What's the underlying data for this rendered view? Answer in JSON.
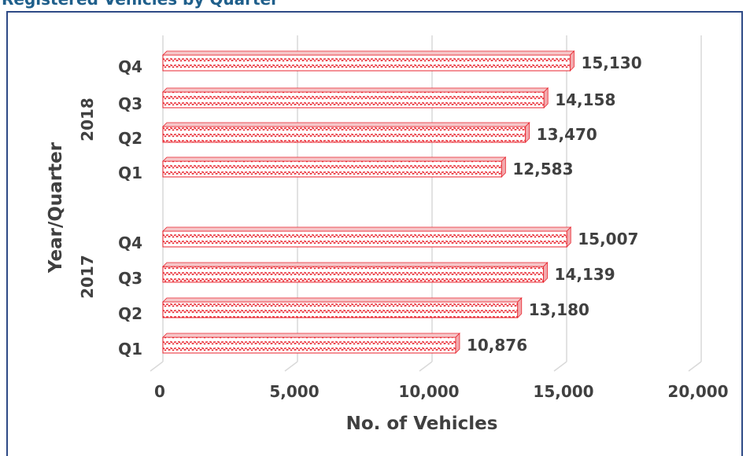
{
  "header": {
    "title_fragment": "Registered Vehicles by Quarter"
  },
  "chart_data": {
    "type": "bar",
    "orientation": "horizontal",
    "style": "3d",
    "groups": [
      {
        "name": "2018",
        "categories": [
          "Q4",
          "Q3",
          "Q2",
          "Q1"
        ],
        "values": [
          15130,
          14158,
          13470,
          12583
        ]
      },
      {
        "name": "2017",
        "categories": [
          "Q4",
          "Q3",
          "Q2",
          "Q1"
        ],
        "values": [
          15007,
          14139,
          13180,
          10876
        ]
      }
    ],
    "value_labels": {
      "2018": [
        "15,130",
        "14,158",
        "13,470",
        "12,583"
      ],
      "2017": [
        "15,007",
        "14,139",
        "13,180",
        "10,876"
      ]
    },
    "xlabel": "No. of Vehicles",
    "ylabel": "Year/Quarter",
    "xlim": [
      0,
      20000
    ],
    "xticks": [
      0,
      5000,
      10000,
      15000,
      20000
    ],
    "xtick_labels": [
      "0",
      "5,000",
      "10,000",
      "15,000",
      "20,000"
    ],
    "grid": "vertical",
    "legend": "none",
    "bar_color": "#e8232c",
    "pattern": "zigzag"
  }
}
